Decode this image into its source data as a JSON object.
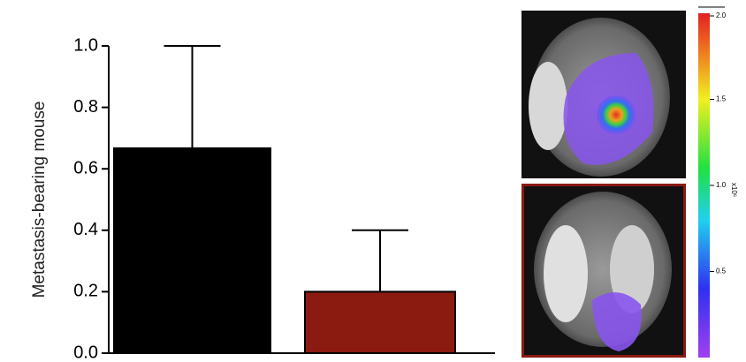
{
  "chart_data": [
    {
      "type": "bar",
      "y_label": "Metastasis-bearing mouse",
      "categories": [
        null,
        null
      ],
      "values": [
        0.667,
        0.2
      ],
      "errors": [
        0.333,
        0.2
      ],
      "colors": [
        "#000000",
        "#8b1a10"
      ],
      "ylim": [
        0,
        1.0
      ],
      "yticks": [
        {
          "value": 0,
          "label": "0.0"
        },
        {
          "value": 0.2,
          "label": "0.2"
        },
        {
          "value": 0.4,
          "label": "0.4"
        },
        {
          "value": 0.6,
          "label": "0.6"
        },
        {
          "value": 0.8,
          "label": "0.8"
        },
        {
          "value": 1.0,
          "label": "1.0"
        }
      ]
    },
    {
      "type": "colorbar",
      "label": "x10⁶",
      "ylim": [
        0,
        2.0
      ],
      "yticks": [
        {
          "value": 2.0,
          "label": "2.0"
        },
        1.5,
        {
          "value": 1.0,
          "label": "1.0"
        },
        0.5
      ]
    }
  ]
}
